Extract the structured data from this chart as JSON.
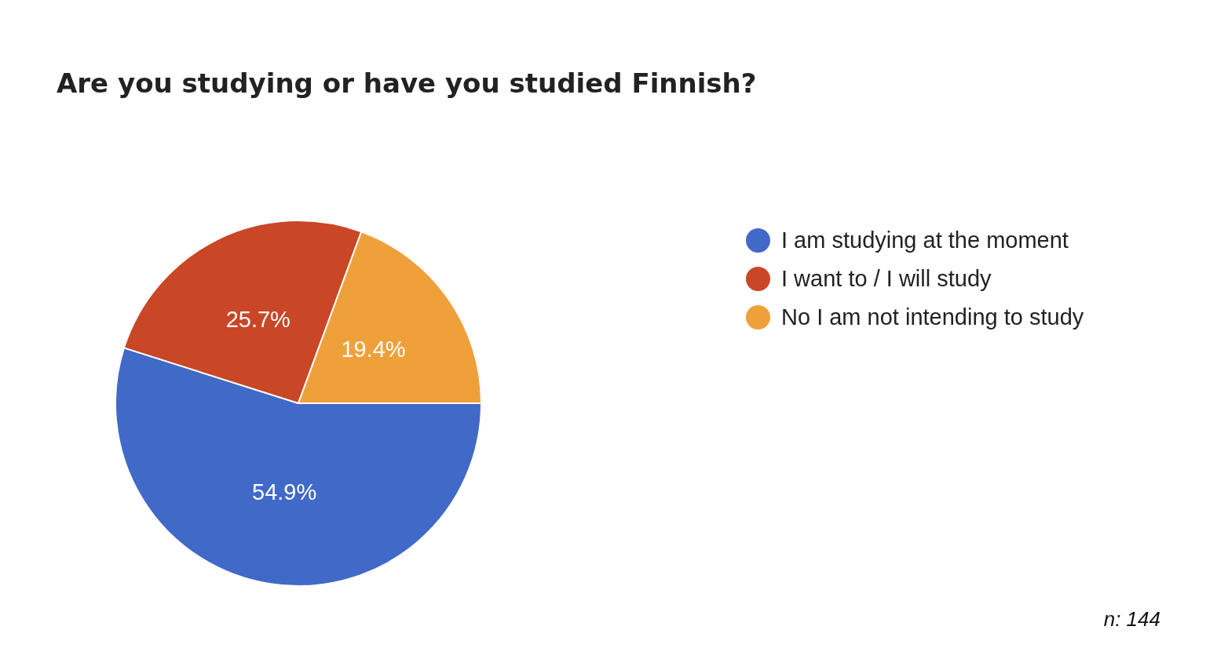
{
  "chart_data": {
    "type": "pie",
    "title": "Are you studying or have you studied Finnish?",
    "categories": [
      "I am studying at the moment",
      "I want to / I will study",
      "No I am not intending to study"
    ],
    "values": [
      54.9,
      25.7,
      19.4
    ],
    "colors": [
      "#4169c8",
      "#c94626",
      "#f0a03a"
    ],
    "value_labels": [
      "54.9%",
      "25.7%",
      "19.4%"
    ],
    "legend": "right",
    "annotations": [
      "n: 144"
    ]
  }
}
